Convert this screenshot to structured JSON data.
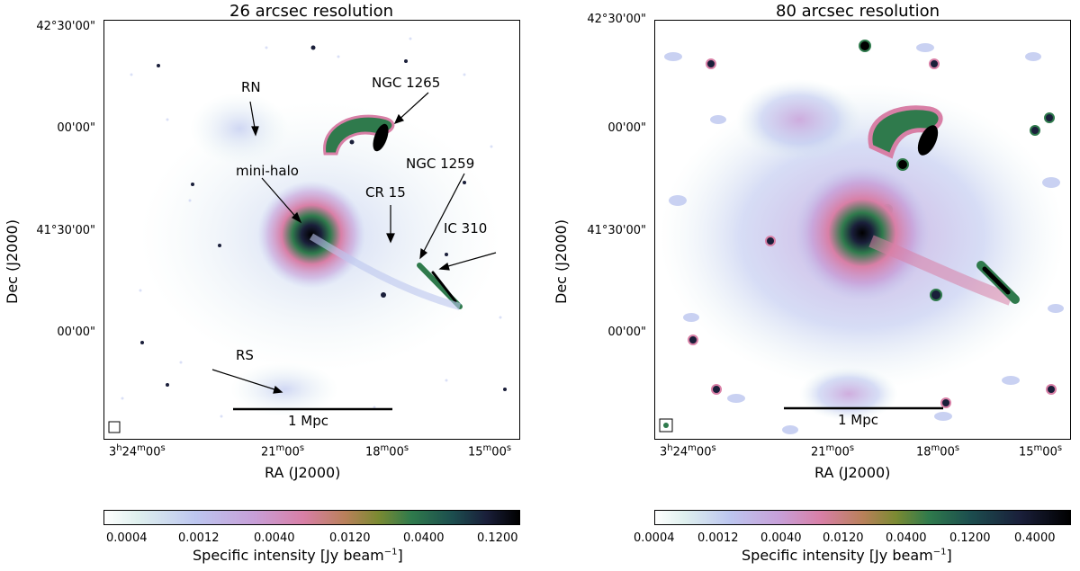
{
  "panels": [
    {
      "title": "26 arcsec resolution",
      "ylabel": "Dec (J2000)",
      "xlabel": "RA (J2000)",
      "yticks": [
        "42°30'00\"",
        "00'00\"",
        "41°30'00\"",
        "00'00\""
      ],
      "xticks": {
        "t1": {
          "base": "3",
          "h": "h",
          "m": "24",
          "mu": "m",
          "s": "00",
          "su": "s"
        },
        "t2": {
          "m": "21",
          "mu": "m",
          "s": "00",
          "su": "s"
        },
        "t3": {
          "m": "18",
          "mu": "m",
          "s": "00",
          "su": "s"
        },
        "t4": {
          "m": "15",
          "mu": "m",
          "s": "00",
          "su": "s"
        }
      },
      "annotations": [
        "RN",
        "NGC 1265",
        "NGC 1259",
        "mini-halo",
        "CR 15",
        "IC 310",
        "RS"
      ],
      "scalebar": "1 Mpc",
      "colorbar": {
        "ticks": [
          "0.0004",
          "0.0012",
          "0.0040",
          "0.0120",
          "0.0400",
          "0.1200"
        ],
        "label": "Specific intensity [Jy beam",
        "label_sup": "−1",
        "label_end": "]"
      }
    },
    {
      "title": "80 arcsec resolution",
      "ylabel": "Dec (J2000)",
      "xlabel": "RA (J2000)",
      "yticks": [
        "42°30'00\"",
        "00'00\"",
        "41°30'00\"",
        "00'00\""
      ],
      "xticks": {
        "t1": {
          "base": "3",
          "h": "h",
          "m": "24",
          "mu": "m",
          "s": "00",
          "su": "s"
        },
        "t2": {
          "m": "21",
          "mu": "m",
          "s": "00",
          "su": "s"
        },
        "t3": {
          "m": "18",
          "mu": "m",
          "s": "00",
          "su": "s"
        },
        "t4": {
          "m": "15",
          "mu": "m",
          "s": "00",
          "su": "s"
        }
      },
      "scalebar": "1 Mpc",
      "colorbar": {
        "ticks": [
          "0.0004",
          "0.0012",
          "0.0040",
          "0.0120",
          "0.0400",
          "0.1200",
          "0.4000"
        ],
        "label": "Specific intensity [Jy beam",
        "label_sup": "−1",
        "label_end": "]"
      }
    }
  ],
  "colors": {
    "cmap": [
      "#ffffff",
      "#dff0ee",
      "#bcc6ef",
      "#c79fd8",
      "#d87fa6",
      "#b9805a",
      "#7b8a32",
      "#2f7a4c",
      "#1c4d4e",
      "#1a1f3a",
      "#000000"
    ]
  }
}
